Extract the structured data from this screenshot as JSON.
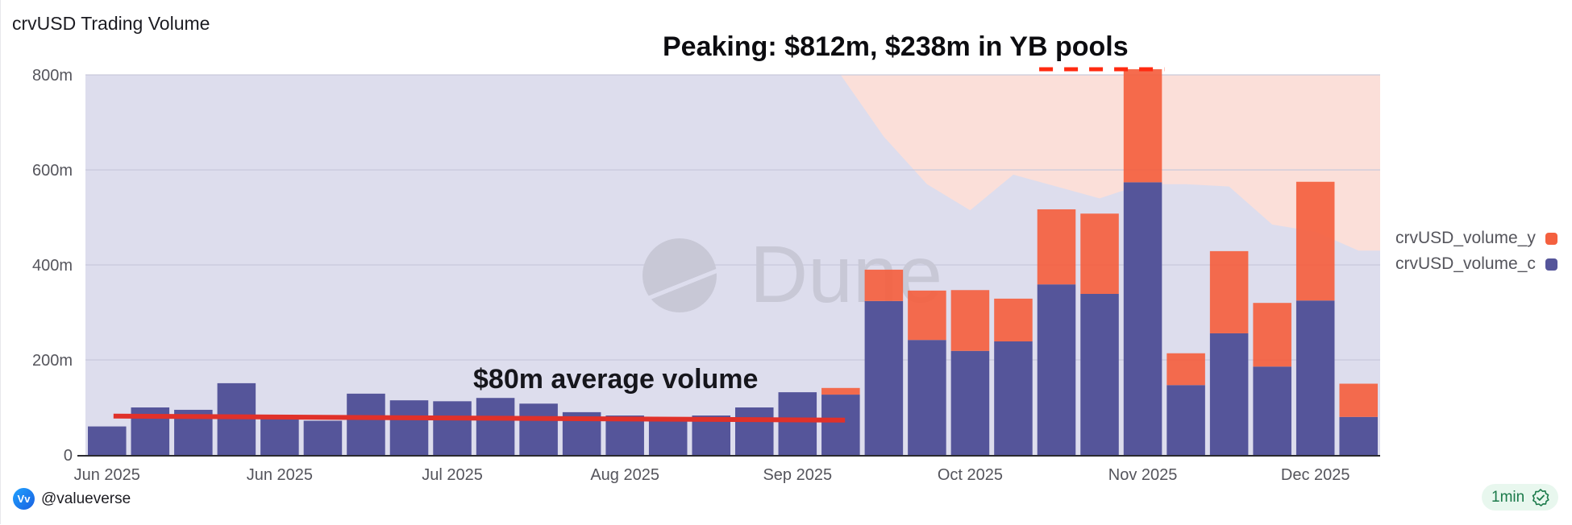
{
  "header": {
    "title": "crvUSD Trading Volume"
  },
  "footer": {
    "username": "@valueverse",
    "avatar_text": "Vv",
    "refresh_badge": "1min",
    "badge_icon": "verified-check-icon"
  },
  "watermark": {
    "text": "Dune"
  },
  "colors": {
    "series_y": "#f4603f",
    "series_c": "#55559a",
    "bg_area_blue": "#dddded",
    "bg_area_pink": "#fbdfd9",
    "annotation_line": "#e0312a"
  },
  "chart_data": {
    "type": "bar",
    "stacked": true,
    "title": "crvUSD Trading Volume",
    "xlabel": "",
    "ylabel": "",
    "ylim": [
      0,
      800
    ],
    "yticks": [
      0,
      200,
      400,
      600,
      800
    ],
    "ytick_labels": [
      "0",
      "200m",
      "400m",
      "600m",
      "800m"
    ],
    "xtick_labels": [
      "Jun 2025",
      "Jun 2025",
      "Jul 2025",
      "Aug 2025",
      "Sep 2025",
      "Oct 2025",
      "Nov 2025",
      "Dec 2025"
    ],
    "xtick_bar_index": [
      0,
      4,
      8,
      12,
      16,
      20,
      24,
      28
    ],
    "grid": true,
    "legend_position": "right",
    "series": [
      {
        "name": "crvUSD_volume_c",
        "color": "#55559a",
        "values": [
          60,
          100,
          95,
          151,
          78,
          72,
          129,
          115,
          113,
          120,
          108,
          90,
          83,
          72,
          83,
          100,
          132,
          127,
          324,
          242,
          219,
          239,
          359,
          339,
          574,
          147,
          256,
          186,
          325,
          80
        ]
      },
      {
        "name": "crvUSD_volume_y",
        "color": "#f4603f",
        "values": [
          0,
          0,
          0,
          0,
          0,
          0,
          0,
          0,
          0,
          0,
          0,
          0,
          0,
          0,
          0,
          0,
          0,
          14,
          66,
          104,
          128,
          90,
          158,
          169,
          238,
          67,
          173,
          134,
          250,
          70
        ]
      }
    ],
    "background_area_boundary": [
      800,
      800,
      800,
      800,
      800,
      800,
      800,
      800,
      800,
      800,
      800,
      800,
      800,
      800,
      800,
      800,
      800,
      800,
      670,
      570,
      515,
      590,
      565,
      540,
      570,
      570,
      565,
      485,
      470,
      430
    ],
    "annotations": [
      {
        "text": "Peaking: $812m, $238m in YB pools",
        "type": "dashed-line",
        "value": 812
      },
      {
        "text": "$80m average volume",
        "type": "line",
        "value": 80
      }
    ]
  }
}
